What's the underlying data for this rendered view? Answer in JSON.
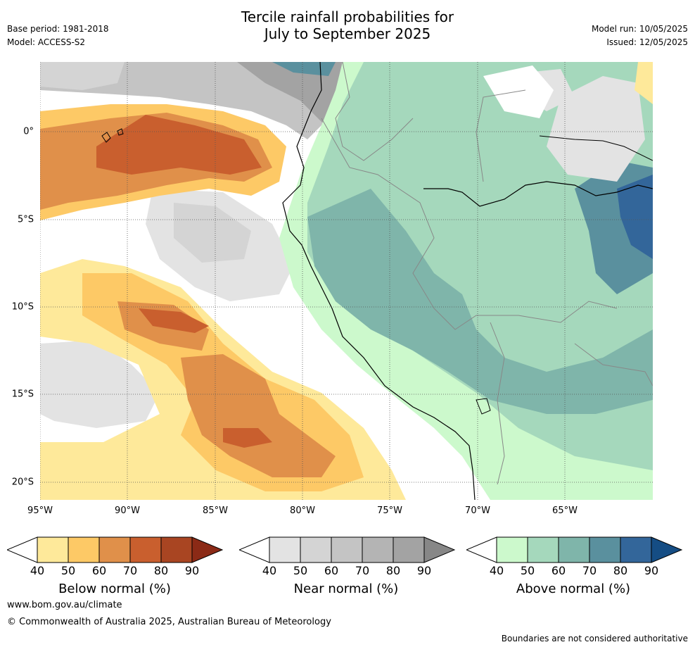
{
  "header": {
    "title_line1": "Tercile rainfall probabilities for",
    "title_line2": "July to September 2025",
    "base_period": "Base period: 1981-2018",
    "model": "Model: ACCESS-S2",
    "model_run": "Model run: 10/05/2025",
    "issued": "Issued: 12/05/2025"
  },
  "map": {
    "lat_labels": [
      "0°",
      "5°S",
      "10°S",
      "15°S",
      "20°S"
    ],
    "lon_labels": [
      "95°W",
      "90°W",
      "85°W",
      "80°W",
      "75°W",
      "70°W",
      "65°W"
    ]
  },
  "legends": [
    {
      "label": "Below normal (%)",
      "ticks": [
        "40",
        "50",
        "60",
        "70",
        "80",
        "90"
      ],
      "colors": [
        "#fee99a",
        "#fdc966",
        "#e0904a",
        "#c95f2e",
        "#a94522",
        "#8b2a16"
      ]
    },
    {
      "label": "Near normal (%)",
      "ticks": [
        "40",
        "50",
        "60",
        "70",
        "80",
        "90"
      ],
      "colors": [
        "#e3e3e3",
        "#d4d4d4",
        "#c4c4c4",
        "#b4b4b4",
        "#a3a3a3",
        "#878787"
      ]
    },
    {
      "label": "Above normal (%)",
      "ticks": [
        "40",
        "50",
        "60",
        "70",
        "80",
        "90"
      ],
      "colors": [
        "#ccf9cc",
        "#a5d8bc",
        "#7fb5aa",
        "#5a909e",
        "#33669a",
        "#154d84"
      ]
    }
  ],
  "footer": {
    "website": "www.bom.gov.au/climate",
    "copyright": "© Commonwealth of Australia 2025, Australian Bureau of Meteorology",
    "disclaimer": "Boundaries are not considered authoritative"
  }
}
